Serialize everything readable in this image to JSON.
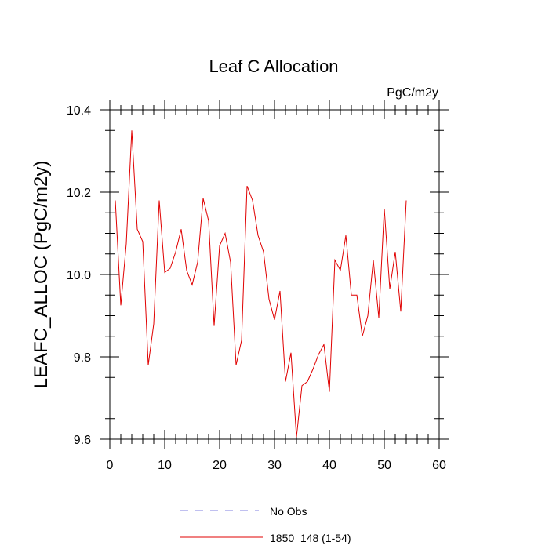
{
  "chart_data": {
    "type": "line",
    "title": "Leaf C Allocation",
    "units_label": "PgC/m2y",
    "xlabel": "",
    "ylabel": "LEAFC_ALLOC  (PgC/m2y)",
    "xlim": [
      0,
      60
    ],
    "ylim": [
      9.6,
      10.4
    ],
    "xticks": [
      "0",
      "10",
      "20",
      "30",
      "40",
      "50",
      "60"
    ],
    "yticks": [
      "9.6",
      "9.8",
      "10.0",
      "10.2",
      "10.4"
    ],
    "grid": false,
    "legend_position": "bottom",
    "series": [
      {
        "name": "1850_148 (1-54)",
        "color": "#e00000",
        "style": "solid",
        "x": [
          1,
          2,
          3,
          4,
          5,
          6,
          7,
          8,
          9,
          10,
          11,
          12,
          13,
          14,
          15,
          16,
          17,
          18,
          19,
          20,
          21,
          22,
          23,
          24,
          25,
          26,
          27,
          28,
          29,
          30,
          31,
          32,
          33,
          34,
          35,
          36,
          37,
          38,
          39,
          40,
          41,
          42,
          43,
          44,
          45,
          46,
          47,
          48,
          49,
          50,
          51,
          52,
          53,
          54
        ],
        "values": [
          10.18,
          9.925,
          10.075,
          10.35,
          10.11,
          10.08,
          9.78,
          9.88,
          10.18,
          10.005,
          10.015,
          10.055,
          10.11,
          10.01,
          9.975,
          10.03,
          10.185,
          10.13,
          9.875,
          10.07,
          10.1,
          10.03,
          9.78,
          9.84,
          10.215,
          10.18,
          10.095,
          10.055,
          9.94,
          9.89,
          9.96,
          9.74,
          9.81,
          9.605,
          9.73,
          9.74,
          9.77,
          9.805,
          9.83,
          9.715,
          10.035,
          10.01,
          10.095,
          9.95,
          9.95,
          9.85,
          9.9,
          10.035,
          9.895,
          10.16,
          9.965,
          10.055,
          9.91,
          10.18
        ]
      },
      {
        "name": "No Obs",
        "color": "#8080e0",
        "style": "dashed",
        "x": [],
        "values": []
      }
    ]
  }
}
